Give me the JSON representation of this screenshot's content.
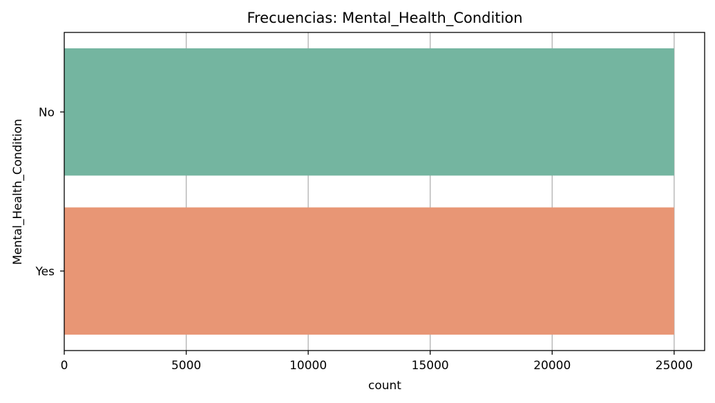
{
  "chart_data": {
    "type": "bar",
    "orientation": "horizontal",
    "title": "Frecuencias: Mental_Health_Condition",
    "xlabel": "count",
    "ylabel": "Mental_Health_Condition",
    "categories": [
      "No",
      "Yes"
    ],
    "values": [
      25000,
      25000
    ],
    "colors": [
      "#74b5a0",
      "#e89675"
    ],
    "xlim": [
      0,
      26250
    ],
    "xticks": [
      0,
      5000,
      10000,
      15000,
      20000,
      25000
    ],
    "grid": "x-axis only"
  }
}
